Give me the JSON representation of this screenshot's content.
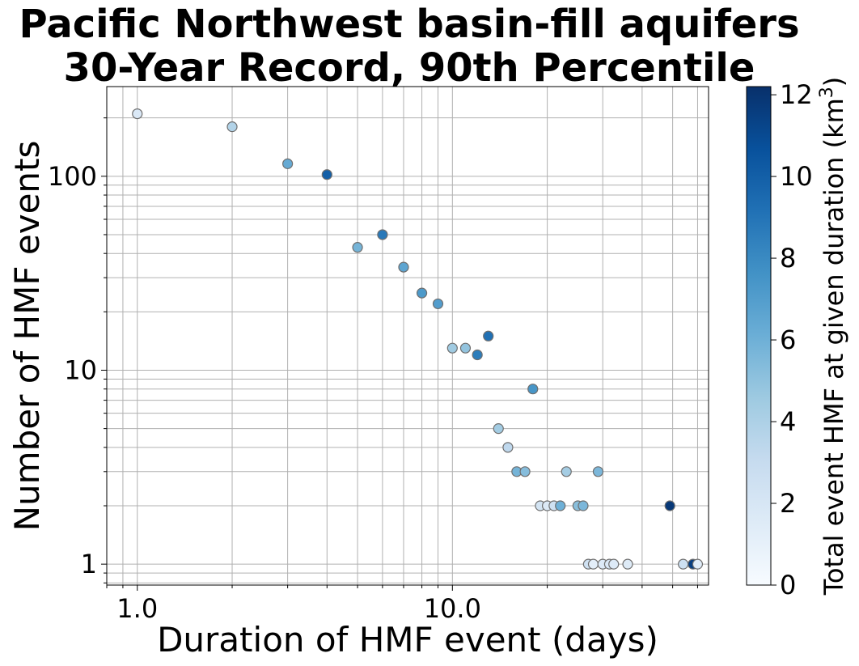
{
  "chart_data": {
    "type": "scatter",
    "title": "Pacific Northwest basin-fill aquifers",
    "subtitle": "30-Year Record, 90th Percentile",
    "xlabel": "Duration of HMF event (days)",
    "ylabel": "Number of HMF events",
    "x_scale": "log",
    "y_scale": "log",
    "xlim": [
      0.8,
      65
    ],
    "ylim": [
      0.78,
      290
    ],
    "grid": true,
    "x_ticks": [
      {
        "value": 1,
        "label": "1.0"
      },
      {
        "value": 10,
        "label": "10.0"
      }
    ],
    "y_ticks": [
      {
        "value": 1,
        "label": "1"
      },
      {
        "value": 10,
        "label": "10"
      },
      {
        "value": 100,
        "label": "100"
      }
    ],
    "colorbar": {
      "label_main": "Total event HMF at given duration (km",
      "label_sup": "3",
      "label_end": ")",
      "range": [
        0,
        12.2
      ],
      "ticks": [
        {
          "value": 0,
          "label": "0"
        },
        {
          "value": 2,
          "label": "2"
        },
        {
          "value": 4,
          "label": "4"
        },
        {
          "value": 6,
          "label": "6"
        },
        {
          "value": 8,
          "label": "8"
        },
        {
          "value": 10,
          "label": "10"
        },
        {
          "value": 12,
          "label": "12"
        }
      ],
      "colormap": "Blues",
      "colors": [
        "#f7fbff",
        "#deebf7",
        "#c6dbef",
        "#9ecae1",
        "#6baed6",
        "#4292c6",
        "#2171b5",
        "#08519c",
        "#08306b"
      ]
    },
    "points": [
      {
        "x": 1,
        "y": 210,
        "c": 1.8
      },
      {
        "x": 2,
        "y": 180,
        "c": 3.8
      },
      {
        "x": 3,
        "y": 116,
        "c": 6.3
      },
      {
        "x": 4,
        "y": 102,
        "c": 10.0
      },
      {
        "x": 5,
        "y": 43,
        "c": 5.8
      },
      {
        "x": 6,
        "y": 50,
        "c": 8.8
      },
      {
        "x": 7,
        "y": 34,
        "c": 6.6
      },
      {
        "x": 8,
        "y": 25,
        "c": 7.2
      },
      {
        "x": 9,
        "y": 22,
        "c": 7.0
      },
      {
        "x": 10,
        "y": 13,
        "c": 4.5
      },
      {
        "x": 11,
        "y": 13,
        "c": 4.9
      },
      {
        "x": 12,
        "y": 12,
        "c": 8.6
      },
      {
        "x": 13,
        "y": 15,
        "c": 9.2
      },
      {
        "x": 14,
        "y": 5,
        "c": 4.4
      },
      {
        "x": 15,
        "y": 4,
        "c": 3.3
      },
      {
        "x": 16,
        "y": 3,
        "c": 5.8
      },
      {
        "x": 17,
        "y": 3,
        "c": 5.3
      },
      {
        "x": 18,
        "y": 8,
        "c": 7.4
      },
      {
        "x": 19,
        "y": 2,
        "c": 2.2
      },
      {
        "x": 20,
        "y": 2,
        "c": 1.7
      },
      {
        "x": 21,
        "y": 2,
        "c": 2.5
      },
      {
        "x": 22,
        "y": 2,
        "c": 6.0
      },
      {
        "x": 23,
        "y": 3,
        "c": 4.3
      },
      {
        "x": 25,
        "y": 2,
        "c": 5.2
      },
      {
        "x": 26,
        "y": 2,
        "c": 5.6
      },
      {
        "x": 27,
        "y": 1,
        "c": 2.5
      },
      {
        "x": 28,
        "y": 1,
        "c": 1.2
      },
      {
        "x": 29,
        "y": 3,
        "c": 5.6
      },
      {
        "x": 30,
        "y": 1,
        "c": 1.6
      },
      {
        "x": 31.5,
        "y": 1,
        "c": 1.8
      },
      {
        "x": 32.5,
        "y": 1,
        "c": 1.6
      },
      {
        "x": 36,
        "y": 1,
        "c": 1.5
      },
      {
        "x": 49,
        "y": 2,
        "c": 11.8
      },
      {
        "x": 54,
        "y": 1,
        "c": 2.6
      },
      {
        "x": 58,
        "y": 1,
        "c": 11.5
      },
      {
        "x": 60,
        "y": 1,
        "c": 1.4
      }
    ]
  }
}
